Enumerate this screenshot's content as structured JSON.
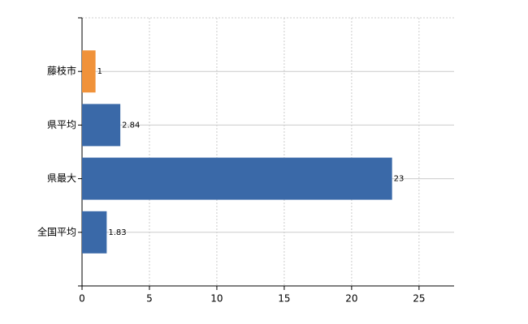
{
  "chart_data": {
    "type": "bar",
    "orientation": "horizontal",
    "categories": [
      "藤枝市",
      "県平均",
      "県最大",
      "全国平均"
    ],
    "values": [
      1,
      2.84,
      23,
      1.83
    ],
    "colors": [
      "#f0923a",
      "#3a69a8",
      "#3a69a8",
      "#3a69a8"
    ],
    "xlim": [
      0,
      27.6
    ],
    "xticks": [
      0,
      5,
      10,
      15,
      20,
      25
    ],
    "grid": true
  }
}
